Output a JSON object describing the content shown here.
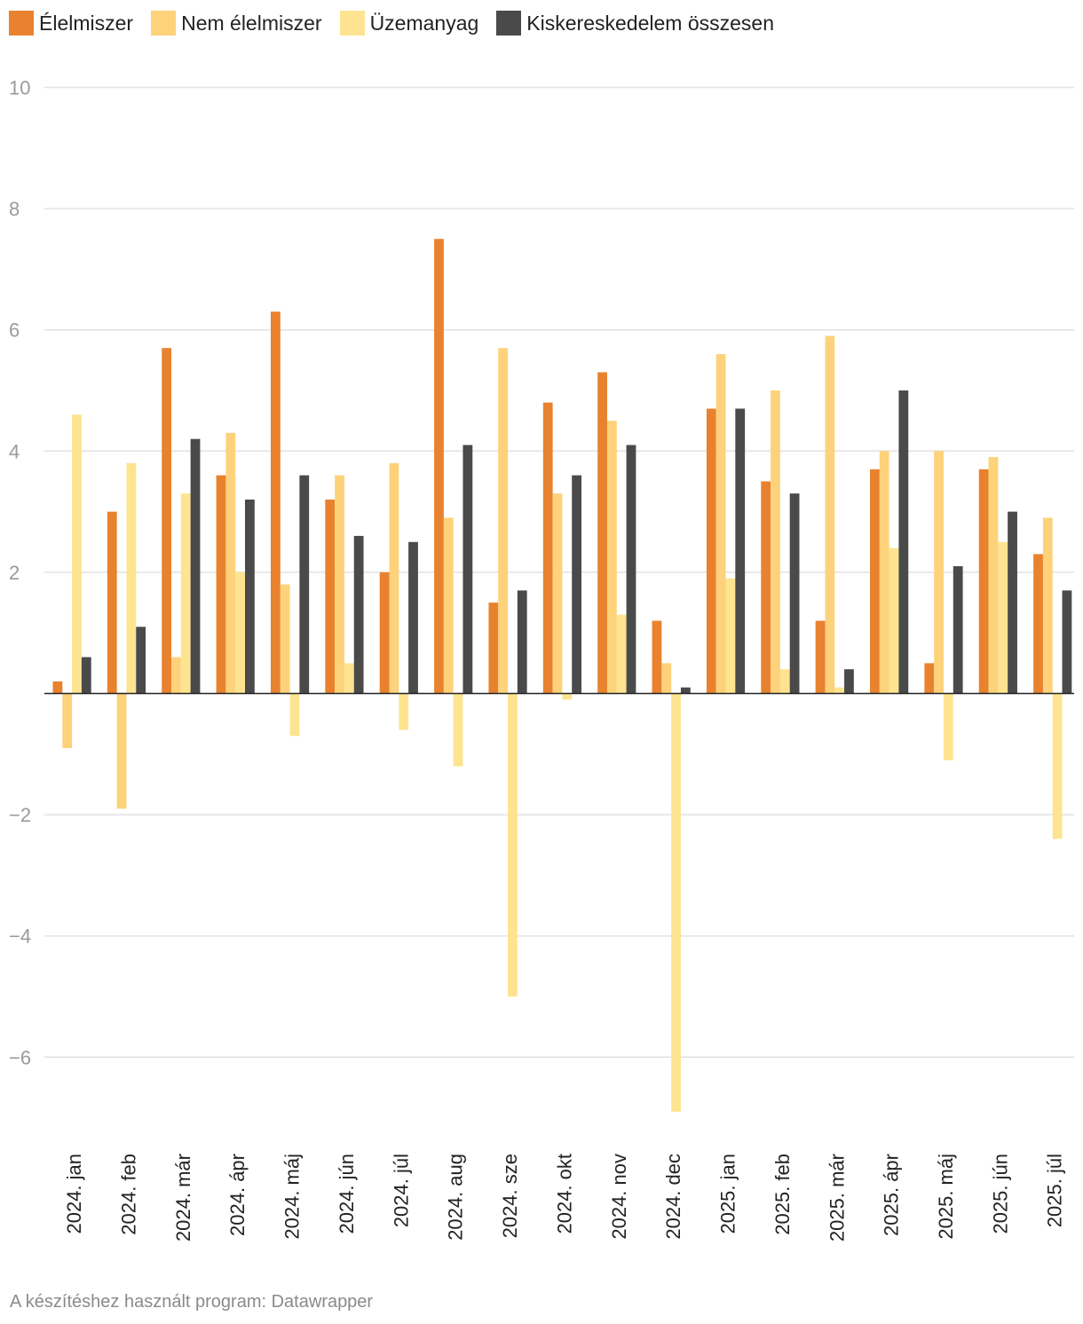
{
  "chart_data": {
    "type": "bar",
    "title": "",
    "xlabel": "",
    "ylabel": "",
    "ylim": [
      -7.5,
      10
    ],
    "yticks": [
      10,
      8,
      6,
      4,
      2,
      -2,
      -4,
      -6
    ],
    "grid": true,
    "legend_position": "top-left",
    "categories": [
      "2024. jan",
      "2024. feb",
      "2024. már",
      "2024. ápr",
      "2024. máj",
      "2024. jún",
      "2024. júl",
      "2024. aug",
      "2024. sze",
      "2024. okt",
      "2024. nov",
      "2024. dec",
      "2025. jan",
      "2025. feb",
      "2025. már",
      "2025. ápr",
      "2025. máj",
      "2025. jún",
      "2025. júl"
    ],
    "series": [
      {
        "name": "Élelmiszer",
        "color": "#e8822e",
        "values": [
          0.2,
          3.0,
          5.7,
          3.6,
          6.3,
          3.2,
          2.0,
          7.5,
          1.5,
          4.8,
          5.3,
          1.2,
          4.7,
          3.5,
          1.2,
          3.7,
          0.5,
          3.7,
          2.3
        ]
      },
      {
        "name": "Nem élelmiszer",
        "color": "#fdd27a",
        "values": [
          -0.9,
          -1.9,
          0.6,
          4.3,
          1.8,
          3.6,
          3.8,
          2.9,
          5.7,
          3.3,
          4.5,
          0.5,
          5.6,
          5.0,
          5.9,
          4.0,
          4.0,
          3.9,
          2.9
        ]
      },
      {
        "name": "Üzemanyag",
        "color": "#fee490",
        "values": [
          4.6,
          3.8,
          3.3,
          2.0,
          -0.7,
          0.5,
          -0.6,
          -1.2,
          -5.0,
          -0.1,
          1.3,
          -6.9,
          1.9,
          0.4,
          0.1,
          2.4,
          -1.1,
          2.5,
          -2.4
        ]
      },
      {
        "name": "Kiskereskedelem összesen",
        "color": "#4a4a4a",
        "values": [
          0.6,
          1.1,
          4.2,
          3.2,
          3.6,
          2.6,
          2.5,
          4.1,
          1.7,
          3.6,
          4.1,
          0.1,
          4.7,
          3.3,
          0.4,
          5.0,
          2.1,
          3.0,
          1.7
        ]
      }
    ]
  },
  "footer": {
    "credit": "A készítéshez használt program: Datawrapper"
  }
}
